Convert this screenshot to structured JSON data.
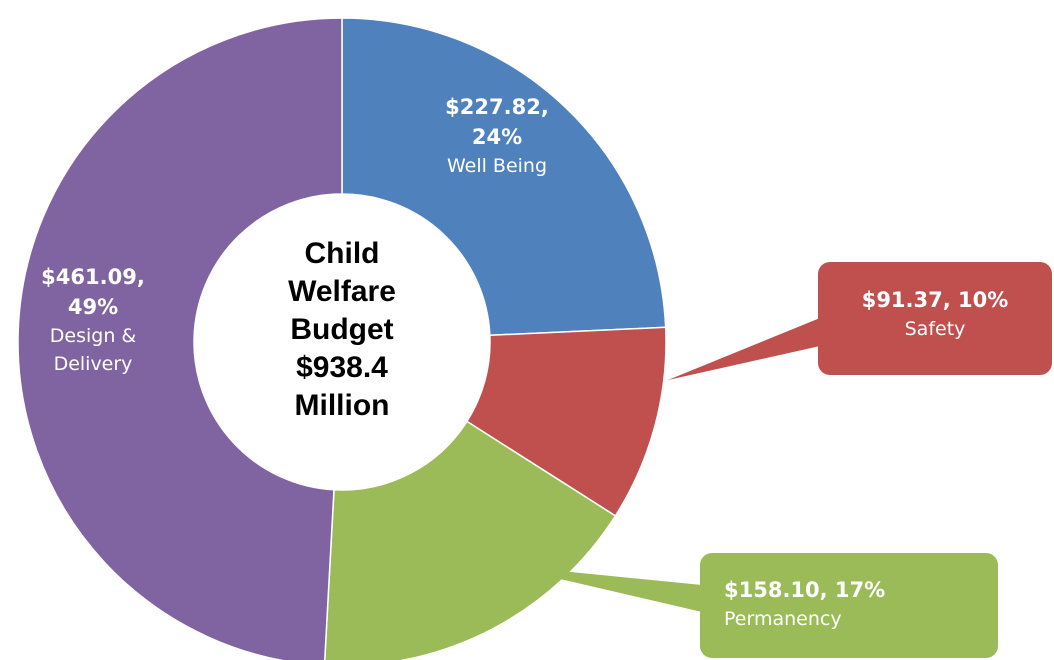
{
  "chart_data": {
    "type": "donut",
    "center_label": "Child Welfare Budget $938.4 Million",
    "categories": [
      "Well Being",
      "Safety",
      "Permanency",
      "Design & Delivery"
    ],
    "values": [
      227.82,
      91.37,
      158.1,
      461.09
    ],
    "value_labels": [
      "$227.82, 24%",
      "$91.37, 10%",
      "$158.10, 17%",
      "$461.09, 49%"
    ],
    "colors": [
      "#4f81bd",
      "#c0504d",
      "#9bbb59",
      "#8064a2"
    ]
  }
}
